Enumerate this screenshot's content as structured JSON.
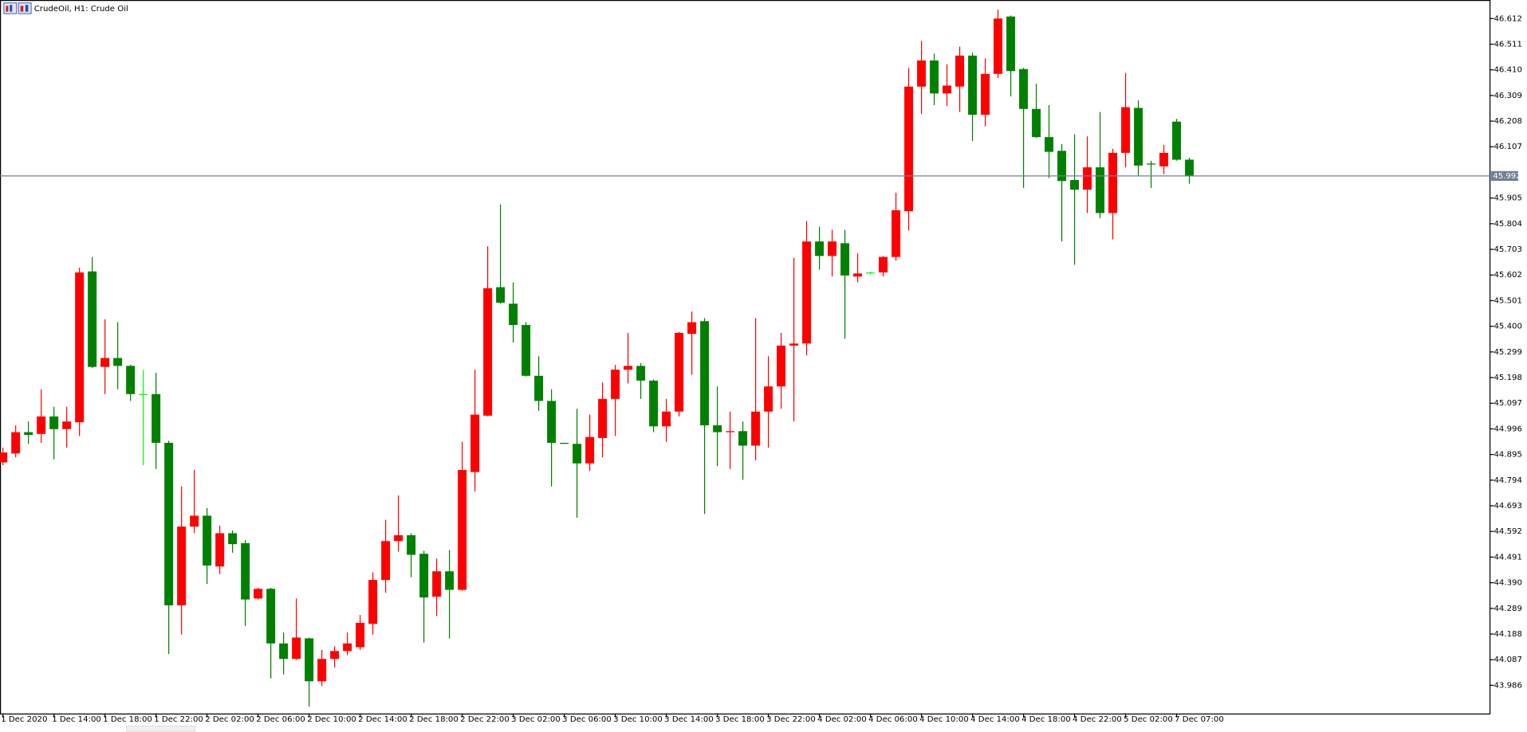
{
  "chart_data": {
    "type": "candlestick",
    "title": "CrudeOil, H1:  Crude Oil",
    "up_color": "#ff0000",
    "down_color": "#008000",
    "doji_color": "#00ff00",
    "current_price": 45.992,
    "ylim": [
      43.875,
      46.685
    ],
    "yticks": [
      46.612,
      46.511,
      {
        "value": 46.41,
        "label": "46.410"
      },
      46.309,
      46.208,
      46.107,
      45.905,
      45.804,
      45.703,
      45.602,
      45.501,
      {
        "value": 45.4,
        "label": "45.400"
      },
      45.299,
      45.198,
      45.097,
      44.996,
      44.895,
      44.794,
      44.693,
      44.592,
      44.491,
      {
        "value": 44.39,
        "label": "44.390"
      },
      44.289,
      44.188,
      44.087,
      43.986
    ],
    "categories": [
      "1 Dec 2020",
      null,
      null,
      null,
      "1 Dec 14:00",
      null,
      null,
      null,
      "1 Dec 18:00",
      null,
      null,
      null,
      "1 Dec 22:00",
      null,
      null,
      null,
      "2 Dec 02:00",
      null,
      null,
      null,
      "2 Dec 06:00",
      null,
      null,
      null,
      "2 Dec 10:00",
      null,
      null,
      null,
      "2 Dec 14:00",
      null,
      null,
      null,
      "2 Dec 18:00",
      null,
      null,
      null,
      "2 Dec 22:00",
      null,
      null,
      null,
      "3 Dec 02:00",
      null,
      null,
      null,
      "3 Dec 06:00",
      null,
      null,
      null,
      "3 Dec 10:00",
      null,
      null,
      null,
      "3 Dec 14:00",
      null,
      null,
      null,
      "3 Dec 18:00",
      null,
      null,
      null,
      "3 Dec 22:00",
      null,
      null,
      null,
      "4 Dec 02:00",
      null,
      null,
      null,
      "4 Dec 06:00",
      null,
      null,
      null,
      "4 Dec 10:00",
      null,
      null,
      null,
      "4 Dec 14:00",
      null,
      null,
      null,
      "4 Dec 18:00",
      null,
      null,
      null,
      "4 Dec 22:00",
      null,
      null,
      null,
      "5 Dec 02:00",
      null,
      null,
      null,
      "7 Dec 07:00",
      null
    ],
    "open": [
      44.864,
      44.899,
      44.983,
      44.976,
      45.045,
      44.995,
      45.022,
      45.616,
      45.24,
      45.275,
      45.244,
      45.133,
      45.133,
      44.941,
      44.301,
      44.611,
      44.654,
      44.454,
      44.585,
      44.546,
      44.328,
      44.366,
      44.151,
      44.09,
      44.171,
      44.002,
      44.09,
      44.121,
      44.136,
      44.228,
      44.401,
      44.554,
      44.577,
      44.504,
      44.335,
      44.435,
      44.362,
      44.826,
      45.048,
      45.554,
      45.489,
      45.405,
      45.205,
      45.106,
      44.941,
      44.937,
      44.86,
      44.96,
      45.114,
      45.229,
      45.244,
      45.186,
      45.006,
      45.064,
      45.37,
      45.42,
      45.01,
      44.983,
      44.987,
      44.93,
      45.064,
      45.163,
      45.324,
      45.332,
      45.734,
      45.677,
      45.727,
      45.596,
      45.612,
      45.612,
      45.673,
      45.853,
      46.344,
      46.447,
      46.317,
      46.344,
      46.466,
      46.233,
      46.394,
      46.62,
      46.413,
      46.256,
      46.145,
      46.091,
      45.976,
      45.938,
      46.026,
      45.846,
      46.083,
      46.26,
      46.041,
      46.03,
      46.206,
      46.056
    ],
    "high": [
      44.922,
      45.01,
      45.025,
      45.152,
      45.083,
      45.083,
      45.631,
      45.673,
      45.428,
      45.416,
      45.248,
      45.229,
      45.217,
      44.949,
      44.769,
      44.834,
      44.684,
      44.615,
      44.596,
      44.558,
      44.37,
      44.37,
      44.194,
      44.328,
      44.174,
      44.125,
      44.14,
      44.194,
      44.263,
      44.431,
      44.638,
      44.734,
      44.585,
      44.516,
      44.485,
      44.519,
      44.945,
      45.229,
      45.715,
      45.88,
      45.573,
      45.416,
      45.282,
      45.152,
      44.941,
      45.075,
      45.052,
      45.179,
      45.248,
      45.374,
      45.255,
      45.19,
      45.114,
      45.378,
      45.458,
      45.432,
      45.163,
      45.064,
      45.025,
      45.432,
      45.282,
      45.374,
      45.669,
      45.815,
      45.792,
      45.78,
      45.78,
      45.688,
      45.616,
      45.677,
      45.926,
      46.417,
      46.524,
      46.474,
      46.432,
      46.501,
      46.478,
      46.455,
      46.647,
      46.624,
      46.417,
      46.355,
      46.271,
      46.118,
      46.156,
      46.148,
      46.244,
      46.099,
      46.398,
      46.29,
      46.052,
      46.114,
      46.217,
      46.064
    ],
    "low": [
      44.853,
      44.884,
      44.937,
      44.941,
      44.876,
      44.922,
      44.968,
      45.236,
      45.133,
      45.152,
      45.106,
      44.853,
      44.838,
      44.109,
      44.186,
      44.585,
      44.385,
      44.424,
      44.508,
      44.22,
      44.324,
      44.013,
      44.029,
      44.086,
      43.902,
      43.983,
      44.056,
      44.105,
      44.125,
      44.186,
      44.351,
      44.512,
      44.412,
      44.155,
      44.259,
      44.171,
      44.358,
      44.749,
      45.045,
      45.489,
      45.336,
      45.202,
      45.067,
      44.769,
      44.937,
      44.646,
      44.83,
      44.884,
      44.968,
      45.175,
      45.114,
      44.983,
      44.945,
      45.045,
      45.209,
      44.661,
      44.849,
      44.838,
      44.795,
      44.872,
      44.922,
      45.075,
      45.025,
      45.286,
      45.623,
      45.596,
      45.351,
      45.573,
      45.604,
      45.596,
      45.658,
      45.777,
      46.236,
      46.271,
      46.267,
      46.244,
      46.129,
      46.187,
      46.378,
      46.305,
      45.945,
      46.141,
      45.984,
      45.734,
      45.642,
      45.846,
      45.826,
      45.742,
      46.026,
      45.991,
      45.945,
      45.999,
      46.052,
      45.961
    ],
    "close": [
      44.903,
      44.983,
      44.972,
      45.045,
      44.995,
      45.025,
      45.612,
      45.24,
      45.275,
      45.244,
      45.133,
      45.133,
      44.941,
      44.301,
      44.611,
      44.654,
      44.458,
      44.585,
      44.542,
      44.324,
      44.366,
      44.151,
      44.09,
      44.174,
      44.002,
      44.09,
      44.121,
      44.151,
      44.232,
      44.401,
      44.554,
      44.577,
      44.5,
      44.332,
      44.435,
      44.362,
      44.834,
      45.052,
      45.55,
      45.493,
      45.405,
      45.205,
      45.106,
      44.941,
      44.937,
      44.86,
      44.964,
      45.114,
      45.229,
      45.244,
      45.186,
      45.006,
      45.064,
      45.374,
      45.416,
      45.01,
      44.983,
      44.987,
      44.93,
      45.064,
      45.163,
      45.324,
      45.332,
      45.734,
      45.677,
      45.734,
      45.6,
      45.608,
      45.612,
      45.673,
      45.857,
      46.344,
      46.447,
      46.317,
      46.348,
      46.466,
      46.233,
      46.394,
      46.612,
      46.405,
      46.256,
      46.145,
      46.087,
      45.972,
      45.938,
      46.026,
      45.846,
      46.083,
      46.263,
      46.033,
      46.037,
      46.083,
      46.056,
      45.991
    ]
  }
}
